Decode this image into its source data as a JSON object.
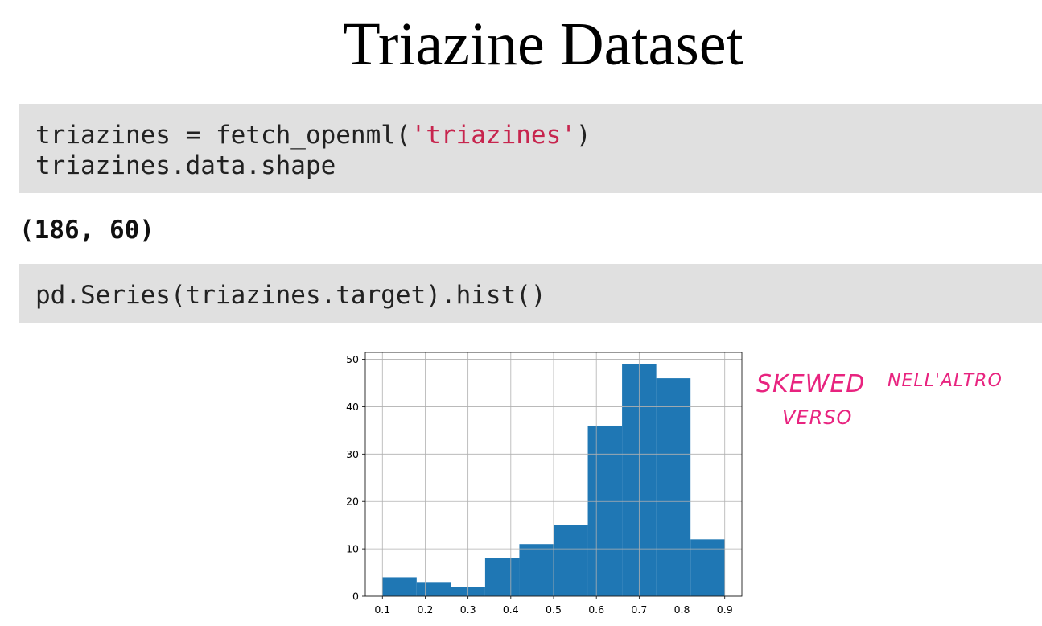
{
  "title": "Triazine Dataset",
  "cells": [
    {
      "lines": [
        [
          "triazines = fetch_openml(",
          "'triazines'",
          ")"
        ],
        [
          "triazines.data.shape"
        ]
      ]
    },
    {
      "lines": [
        [
          "pd.Series(triazines.target).hist()"
        ]
      ]
    }
  ],
  "output": "(186, 60)",
  "chart_data": {
    "type": "histogram",
    "bins": [
      0.1,
      0.18,
      0.26,
      0.34,
      0.42,
      0.5,
      0.58,
      0.66,
      0.74,
      0.82,
      0.9
    ],
    "values": [
      4,
      3,
      2,
      8,
      11,
      15,
      36,
      49,
      46,
      12
    ],
    "color": "#1f77b4",
    "xlim": [
      0.06,
      0.94
    ],
    "ylim": [
      0,
      51.45
    ],
    "xticks": [
      0.1,
      0.2,
      0.3,
      0.4,
      0.5,
      0.6,
      0.7,
      0.8,
      0.9
    ],
    "yticks": [
      0,
      10,
      20,
      30,
      40,
      50
    ],
    "grid": true
  },
  "annotation": {
    "color": "#e8237f",
    "lines": [
      "SKEWED",
      "NELL'ALTRO",
      "VERSO"
    ]
  }
}
